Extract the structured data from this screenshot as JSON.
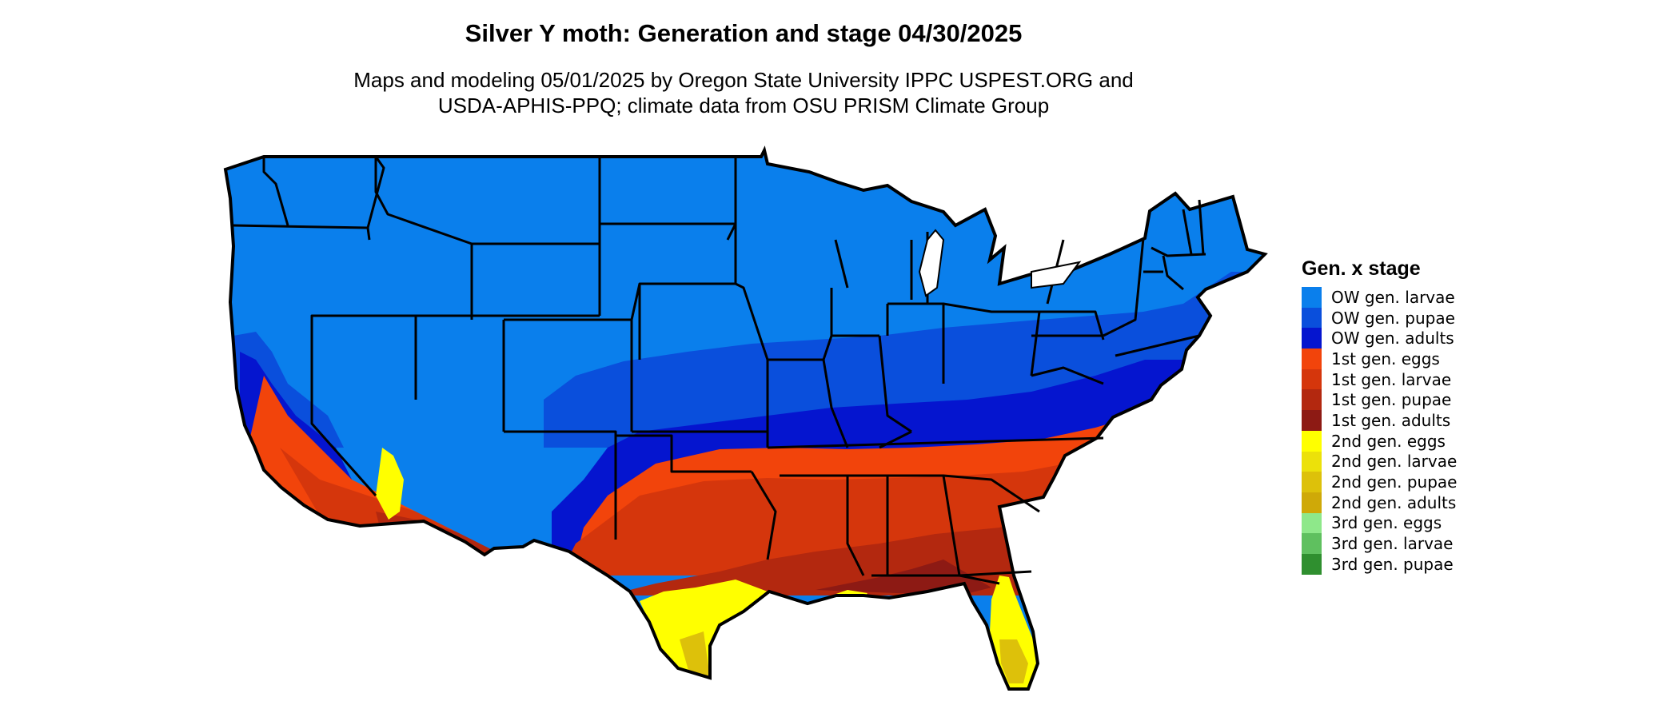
{
  "title": "Silver Y moth: Generation and stage 04/30/2025",
  "subtitle_line1": "Maps and modeling 05/01/2025 by Oregon State University IPPC USPEST.ORG and",
  "subtitle_line2": "USDA-APHIS-PPQ; climate data from OSU PRISM Climate Group",
  "legend": {
    "title": "Gen. x stage",
    "items": [
      {
        "label": "OW gen. larvae",
        "color": "#0a7fec"
      },
      {
        "label": "OW gen. pupae",
        "color": "#0a4fdc"
      },
      {
        "label": "OW gen. adults",
        "color": "#0515cf"
      },
      {
        "label": "1st gen. eggs",
        "color": "#f2440b"
      },
      {
        "label": "1st gen. larvae",
        "color": "#d5360c"
      },
      {
        "label": "1st gen. pupae",
        "color": "#b3280f"
      },
      {
        "label": "1st gen. adults",
        "color": "#8d1a14"
      },
      {
        "label": "2nd gen. eggs",
        "color": "#ffff00"
      },
      {
        "label": "2nd gen. larvae",
        "color": "#ece10a"
      },
      {
        "label": "2nd gen. pupae",
        "color": "#ddc10a"
      },
      {
        "label": "2nd gen. adults",
        "color": "#cfa908"
      },
      {
        "label": "3rd gen. eggs",
        "color": "#8ee88a"
      },
      {
        "label": "3rd gen. larvae",
        "color": "#5fc05f"
      },
      {
        "label": "3rd gen. pupae",
        "color": "#2f8f2f"
      }
    ]
  }
}
